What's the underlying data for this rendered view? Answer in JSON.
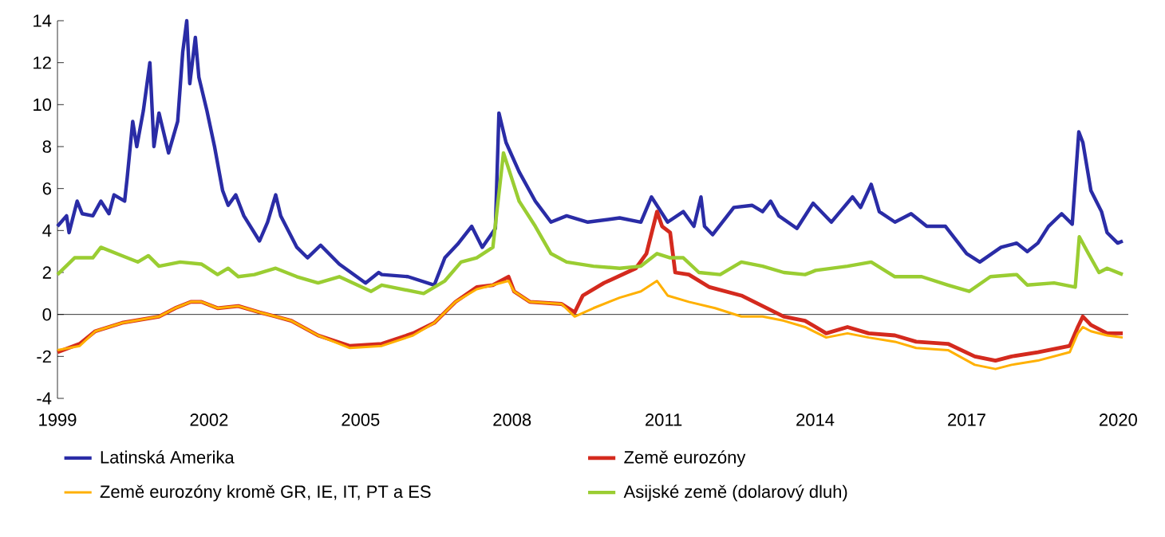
{
  "chart_data": {
    "type": "line",
    "xlim": [
      1999,
      2020.2
    ],
    "xticks": [
      1999,
      2002,
      2005,
      2008,
      2011,
      2014,
      2017,
      2020
    ],
    "ylim": [
      -4,
      14
    ],
    "yticks": [
      -4,
      -2,
      0,
      2,
      4,
      6,
      8,
      10,
      12,
      14
    ],
    "grid": false,
    "legend": "bottom",
    "marker": "none",
    "line_style": "solid",
    "ref_lines": [
      {
        "axis": "y",
        "value": 0,
        "color": "#000000"
      }
    ],
    "series": [
      {
        "name": "Latinská Amerika",
        "color": "#2a2ca6",
        "x": [
          1999.0,
          1999.18,
          1999.23,
          1999.39,
          1999.49,
          1999.7,
          1999.86,
          2000.02,
          2000.12,
          2000.33,
          2000.38,
          2000.49,
          2000.57,
          2000.7,
          2000.83,
          2000.91,
          2001.01,
          2001.2,
          2001.38,
          2001.48,
          2001.56,
          2001.62,
          2001.73,
          2001.8,
          2001.96,
          2002.11,
          2002.27,
          2002.38,
          2002.53,
          2002.69,
          2003.0,
          2003.16,
          2003.32,
          2003.42,
          2003.74,
          2003.95,
          2004.21,
          2004.58,
          2005.1,
          2005.36,
          2005.42,
          2005.94,
          2006.46,
          2006.67,
          2006.94,
          2007.2,
          2007.41,
          2007.67,
          2007.74,
          2007.88,
          2008.14,
          2008.46,
          2008.77,
          2009.08,
          2009.5,
          2010.13,
          2010.55,
          2010.76,
          2011.08,
          2011.39,
          2011.6,
          2011.74,
          2011.81,
          2011.97,
          2012.39,
          2012.75,
          2012.96,
          2013.12,
          2013.28,
          2013.64,
          2013.96,
          2014.32,
          2014.74,
          2014.9,
          2015.11,
          2015.27,
          2015.58,
          2015.9,
          2016.21,
          2016.58,
          2017.0,
          2017.26,
          2017.68,
          2017.99,
          2018.2,
          2018.41,
          2018.62,
          2018.88,
          2019.09,
          2019.22,
          2019.3,
          2019.46,
          2019.67,
          2019.78,
          2019.99,
          2020.09
        ],
        "values": [
          4.2,
          4.7,
          3.9,
          5.4,
          4.8,
          4.7,
          5.4,
          4.8,
          5.7,
          5.4,
          6.5,
          9.2,
          8.0,
          9.7,
          12.0,
          8.0,
          9.6,
          7.7,
          9.2,
          12.5,
          14.0,
          11.0,
          13.2,
          11.3,
          9.7,
          8.0,
          5.9,
          5.2,
          5.7,
          4.7,
          3.5,
          4.4,
          5.7,
          4.7,
          3.2,
          2.7,
          3.3,
          2.4,
          1.5,
          2.0,
          1.9,
          1.8,
          1.4,
          2.7,
          3.4,
          4.2,
          3.2,
          4.1,
          9.6,
          8.2,
          6.8,
          5.4,
          4.4,
          4.7,
          4.4,
          4.6,
          4.4,
          5.6,
          4.4,
          4.9,
          4.2,
          5.6,
          4.2,
          3.8,
          5.1,
          5.2,
          4.9,
          5.4,
          4.7,
          4.1,
          5.3,
          4.4,
          5.6,
          5.1,
          6.2,
          4.9,
          4.4,
          4.8,
          4.2,
          4.2,
          2.9,
          2.5,
          3.2,
          3.4,
          3.0,
          3.4,
          4.2,
          4.8,
          4.3,
          8.7,
          8.2,
          5.9,
          4.9,
          3.9,
          3.4,
          3.5
        ]
      },
      {
        "name": "Země eurozóny",
        "color": "#d42a1e",
        "x": [
          1999.0,
          1999.44,
          1999.75,
          2000.28,
          2001.01,
          2001.33,
          2001.64,
          2001.85,
          2002.17,
          2002.58,
          2003.0,
          2003.32,
          2003.63,
          2004.16,
          2004.79,
          2005.42,
          2006.04,
          2006.46,
          2006.88,
          2007.3,
          2007.62,
          2007.93,
          2008.04,
          2008.35,
          2008.98,
          2009.24,
          2009.4,
          2009.82,
          2010.45,
          2010.66,
          2010.87,
          2010.97,
          2011.13,
          2011.23,
          2011.5,
          2011.91,
          2012.54,
          2012.96,
          2013.38,
          2013.8,
          2014.22,
          2014.64,
          2015.06,
          2015.58,
          2016.0,
          2016.63,
          2017.16,
          2017.57,
          2017.89,
          2018.41,
          2019.04,
          2019.2,
          2019.3,
          2019.46,
          2019.78,
          2020.09
        ],
        "values": [
          -1.8,
          -1.4,
          -0.8,
          -0.4,
          -0.1,
          0.3,
          0.6,
          0.6,
          0.3,
          0.4,
          0.1,
          -0.1,
          -0.3,
          -1.0,
          -1.5,
          -1.4,
          -0.9,
          -0.4,
          0.6,
          1.3,
          1.4,
          1.8,
          1.1,
          0.6,
          0.5,
          0.1,
          0.9,
          1.5,
          2.2,
          2.9,
          4.9,
          4.2,
          3.9,
          2.0,
          1.9,
          1.3,
          0.9,
          0.4,
          -0.1,
          -0.3,
          -0.9,
          -0.6,
          -0.9,
          -1.0,
          -1.3,
          -1.4,
          -2.0,
          -2.2,
          -2.0,
          -1.8,
          -1.5,
          -0.6,
          -0.1,
          -0.5,
          -0.9,
          -0.9
        ]
      },
      {
        "name": "Země eurozóny kromě GR, IE, IT, PT a ES",
        "color": "#ffb000",
        "x": [
          1999.0,
          1999.44,
          1999.75,
          2000.28,
          2001.01,
          2001.33,
          2001.64,
          2001.85,
          2002.17,
          2002.58,
          2003.0,
          2003.32,
          2003.63,
          2004.16,
          2004.79,
          2005.42,
          2006.04,
          2006.46,
          2006.88,
          2007.3,
          2007.62,
          2007.93,
          2008.04,
          2008.35,
          2008.98,
          2009.24,
          2009.61,
          2010.13,
          2010.55,
          2010.87,
          2011.08,
          2011.5,
          2012.02,
          2012.54,
          2012.96,
          2013.38,
          2013.8,
          2014.22,
          2014.64,
          2015.06,
          2015.58,
          2016.0,
          2016.63,
          2017.16,
          2017.57,
          2017.89,
          2018.41,
          2019.04,
          2019.2,
          2019.3,
          2019.46,
          2019.78,
          2020.09
        ],
        "values": [
          -1.7,
          -1.5,
          -0.8,
          -0.4,
          -0.1,
          0.3,
          0.6,
          0.6,
          0.3,
          0.4,
          0.1,
          -0.1,
          -0.3,
          -1.0,
          -1.6,
          -1.5,
          -1.0,
          -0.4,
          0.6,
          1.2,
          1.4,
          1.6,
          1.1,
          0.6,
          0.5,
          -0.1,
          0.3,
          0.8,
          1.1,
          1.6,
          0.9,
          0.6,
          0.3,
          -0.1,
          -0.1,
          -0.3,
          -0.6,
          -1.1,
          -0.9,
          -1.1,
          -1.3,
          -1.6,
          -1.7,
          -2.4,
          -2.6,
          -2.4,
          -2.2,
          -1.8,
          -0.9,
          -0.6,
          -0.8,
          -1.0,
          -1.1
        ]
      },
      {
        "name": "Asijské země (dolarový dluh)",
        "color": "#9acd32",
        "x": [
          1999.0,
          1999.34,
          1999.7,
          1999.86,
          2000.28,
          2000.59,
          2000.8,
          2001.01,
          2001.43,
          2001.85,
          2002.17,
          2002.38,
          2002.58,
          2002.9,
          2003.32,
          2003.74,
          2004.16,
          2004.58,
          2005.21,
          2005.42,
          2006.25,
          2006.67,
          2006.99,
          2007.3,
          2007.62,
          2007.83,
          2008.14,
          2008.46,
          2008.77,
          2009.08,
          2009.61,
          2010.13,
          2010.55,
          2010.87,
          2011.13,
          2011.39,
          2011.7,
          2012.12,
          2012.54,
          2012.96,
          2013.38,
          2013.8,
          2014.01,
          2014.64,
          2015.11,
          2015.58,
          2016.11,
          2016.63,
          2017.05,
          2017.47,
          2017.99,
          2018.2,
          2018.73,
          2019.15,
          2019.23,
          2019.41,
          2019.62,
          2019.78,
          2020.09
        ],
        "values": [
          1.9,
          2.7,
          2.7,
          3.2,
          2.8,
          2.5,
          2.8,
          2.3,
          2.5,
          2.4,
          1.9,
          2.2,
          1.8,
          1.9,
          2.2,
          1.8,
          1.5,
          1.8,
          1.1,
          1.4,
          1.0,
          1.6,
          2.5,
          2.7,
          3.2,
          7.7,
          5.4,
          4.2,
          2.9,
          2.5,
          2.3,
          2.2,
          2.3,
          2.9,
          2.7,
          2.7,
          2.0,
          1.9,
          2.5,
          2.3,
          2.0,
          1.9,
          2.1,
          2.3,
          2.5,
          1.8,
          1.8,
          1.4,
          1.1,
          1.8,
          1.9,
          1.4,
          1.5,
          1.3,
          3.7,
          2.9,
          2.0,
          2.2,
          1.9
        ]
      }
    ]
  }
}
